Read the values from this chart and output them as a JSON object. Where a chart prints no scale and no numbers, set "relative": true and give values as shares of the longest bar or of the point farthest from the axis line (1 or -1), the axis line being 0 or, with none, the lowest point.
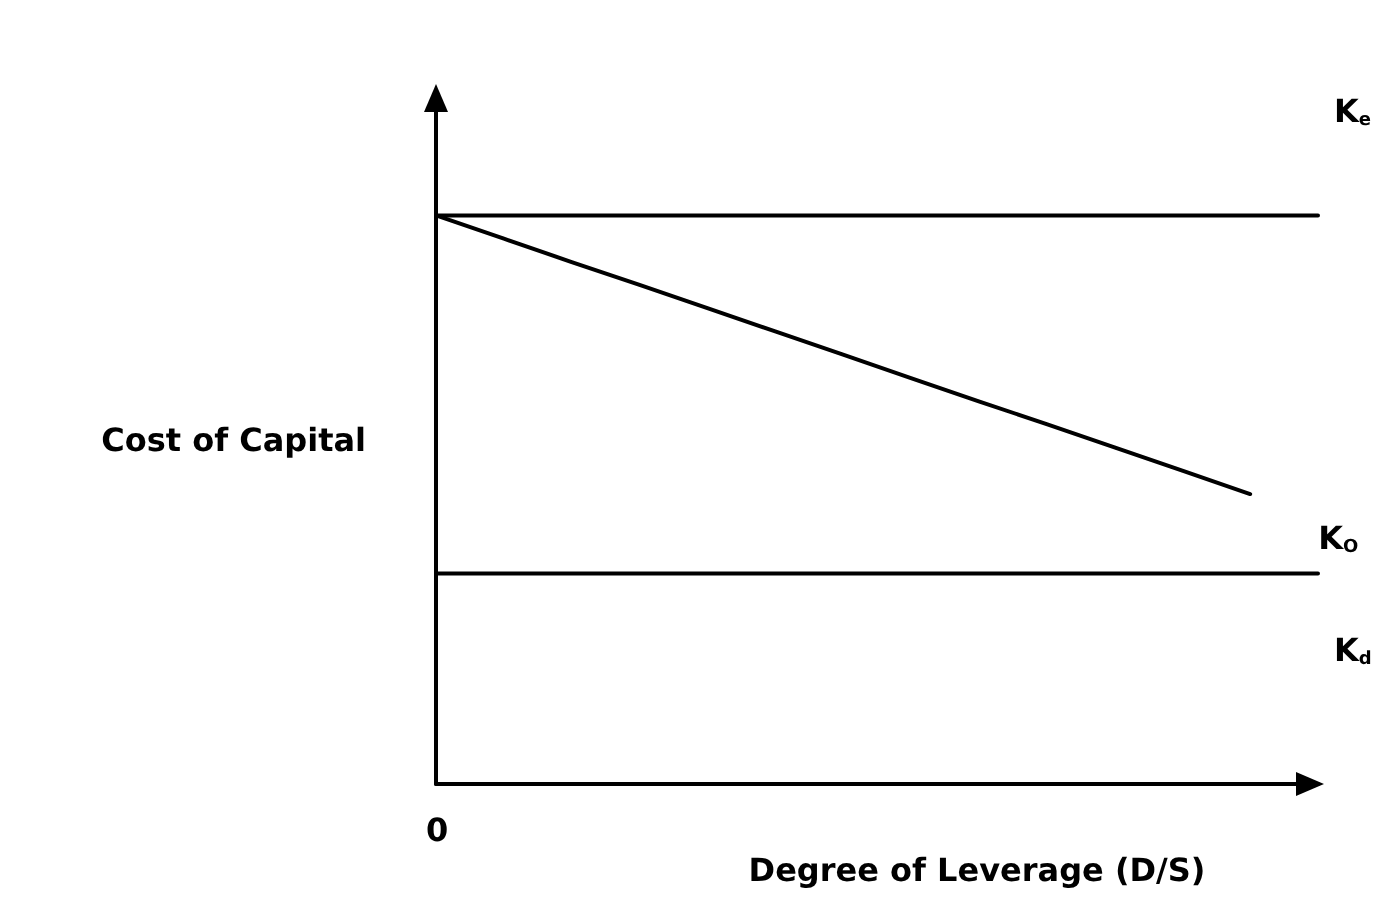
{
  "chart_data": {
    "type": "line",
    "relative": true,
    "ylabel": "Cost of Capital",
    "xlabel": "Degree of Leverage (D/S)",
    "annotations": [
      "0"
    ],
    "grid": false,
    "marker": "none",
    "line_style": "solid",
    "categories": [
      null,
      null,
      null,
      null,
      null,
      null,
      null,
      null,
      null,
      null,
      null,
      null,
      null,
      null
    ],
    "series": [
      {
        "name": "K$_{e}$",
        "color": "#000000",
        "values": [
          1,
          1,
          1,
          1,
          1,
          1,
          1,
          1,
          1,
          1,
          1,
          1,
          1,
          1
        ]
      },
      {
        "name": "K$_{O}$",
        "color": "#000000",
        "values": [
          1,
          0.959,
          0.918,
          0.878,
          0.837,
          0.796,
          0.755,
          0.714,
          0.673,
          0.633,
          0.592,
          0.551,
          0.51,
          null
        ]
      },
      {
        "name": "K$_{d}$",
        "color": "#000000",
        "values": [
          0.37,
          0.37,
          0.37,
          0.37,
          0.37,
          0.37,
          0.37,
          0.37,
          0.37,
          0.37,
          0.37,
          0.37,
          0.37,
          0.37
        ]
      }
    ]
  }
}
